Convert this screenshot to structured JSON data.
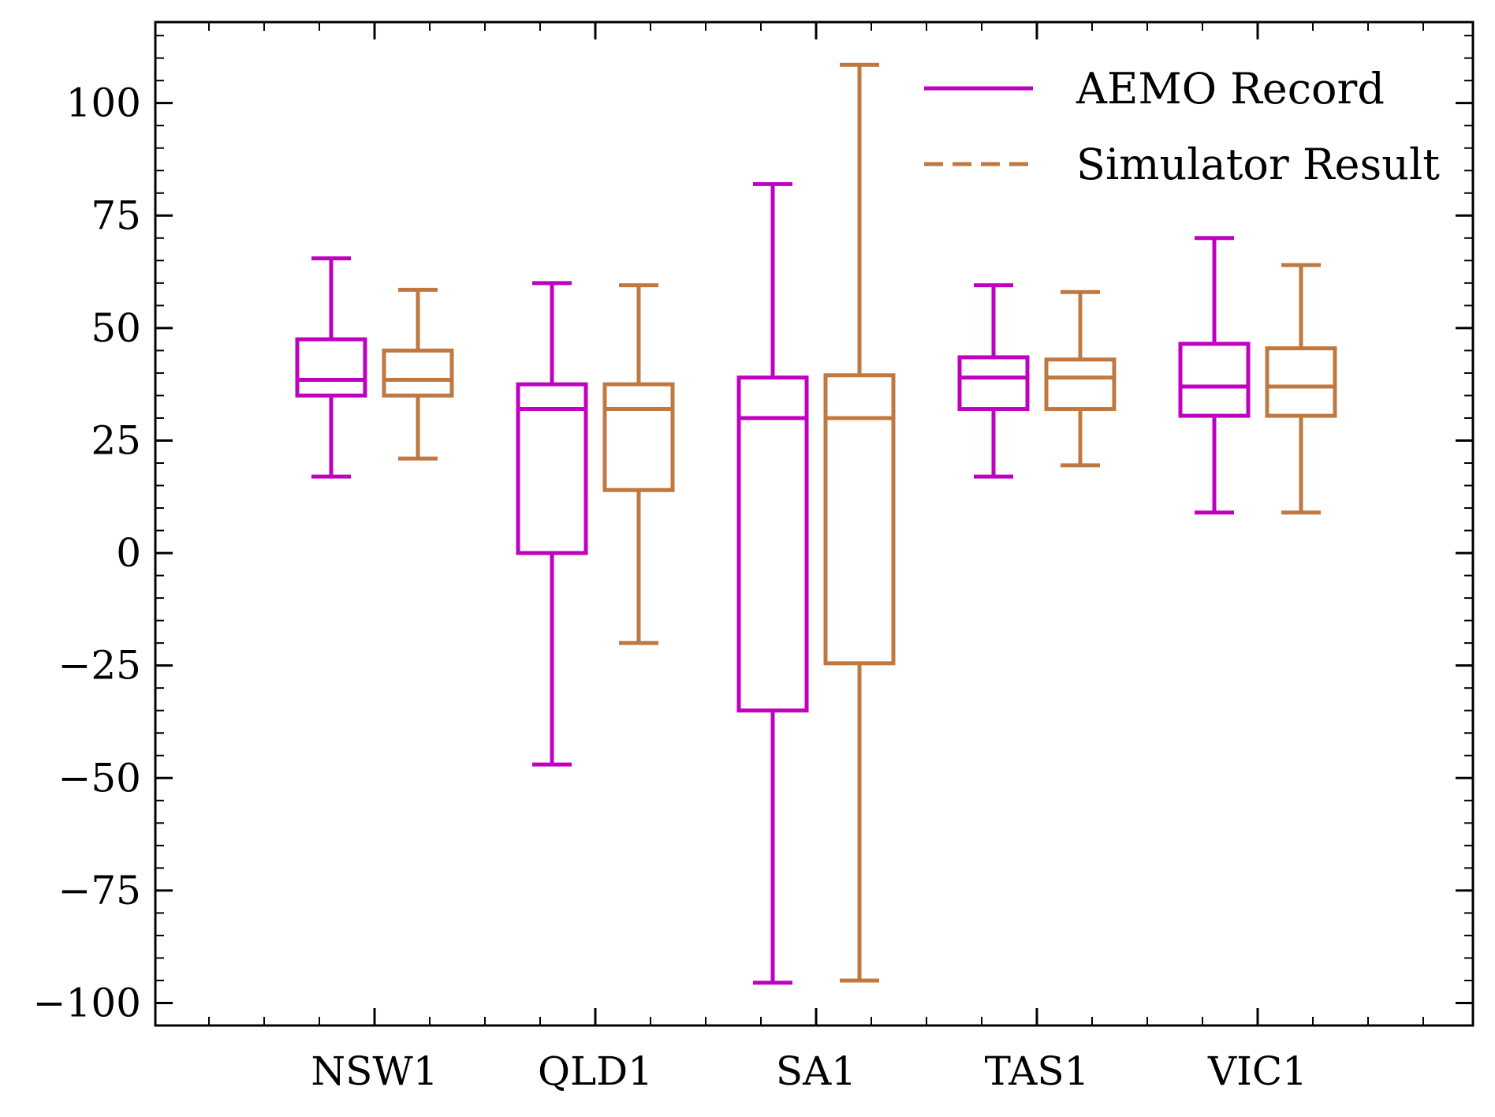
{
  "chart_data": {
    "type": "boxplot",
    "categories": [
      "NSW1",
      "QLD1",
      "SA1",
      "TAS1",
      "VIC1"
    ],
    "ylim": [
      -105,
      118
    ],
    "yticks": [
      -100,
      -75,
      -50,
      -25,
      0,
      25,
      50,
      75,
      100
    ],
    "ytick_labels": [
      "−100",
      "−75",
      "−50",
      "−25",
      "0",
      "25",
      "50",
      "75",
      "100"
    ],
    "legend_position": "top-right",
    "series": [
      {
        "name": "AEMO Record",
        "color": "#c000c0",
        "line_style": "solid",
        "boxes": [
          {
            "whisker_low": 17,
            "q1": 35,
            "median": 38.5,
            "q3": 47.5,
            "whisker_high": 65.5
          },
          {
            "whisker_low": -47,
            "q1": 0,
            "median": 32,
            "q3": 37.5,
            "whisker_high": 60
          },
          {
            "whisker_low": -95.5,
            "q1": -35,
            "median": 30,
            "q3": 39,
            "whisker_high": 82
          },
          {
            "whisker_low": 17,
            "q1": 32,
            "median": 39,
            "q3": 43.5,
            "whisker_high": 59.5
          },
          {
            "whisker_low": 9,
            "q1": 30.5,
            "median": 37,
            "q3": 46.5,
            "whisker_high": 70
          }
        ]
      },
      {
        "name": "Simulator Result",
        "color": "#bf7840",
        "line_style": "dashed",
        "boxes": [
          {
            "whisker_low": 21,
            "q1": 35,
            "median": 38.5,
            "q3": 45,
            "whisker_high": 58.5
          },
          {
            "whisker_low": -20,
            "q1": 14,
            "median": 32,
            "q3": 37.5,
            "whisker_high": 59.5
          },
          {
            "whisker_low": -95,
            "q1": -24.5,
            "median": 30,
            "q3": 39.5,
            "whisker_high": 108.5
          },
          {
            "whisker_low": 19.5,
            "q1": 32,
            "median": 39,
            "q3": 43,
            "whisker_high": 58
          },
          {
            "whisker_low": 9,
            "q1": 30.5,
            "median": 37,
            "q3": 45.5,
            "whisker_high": 64
          }
        ]
      }
    ]
  }
}
